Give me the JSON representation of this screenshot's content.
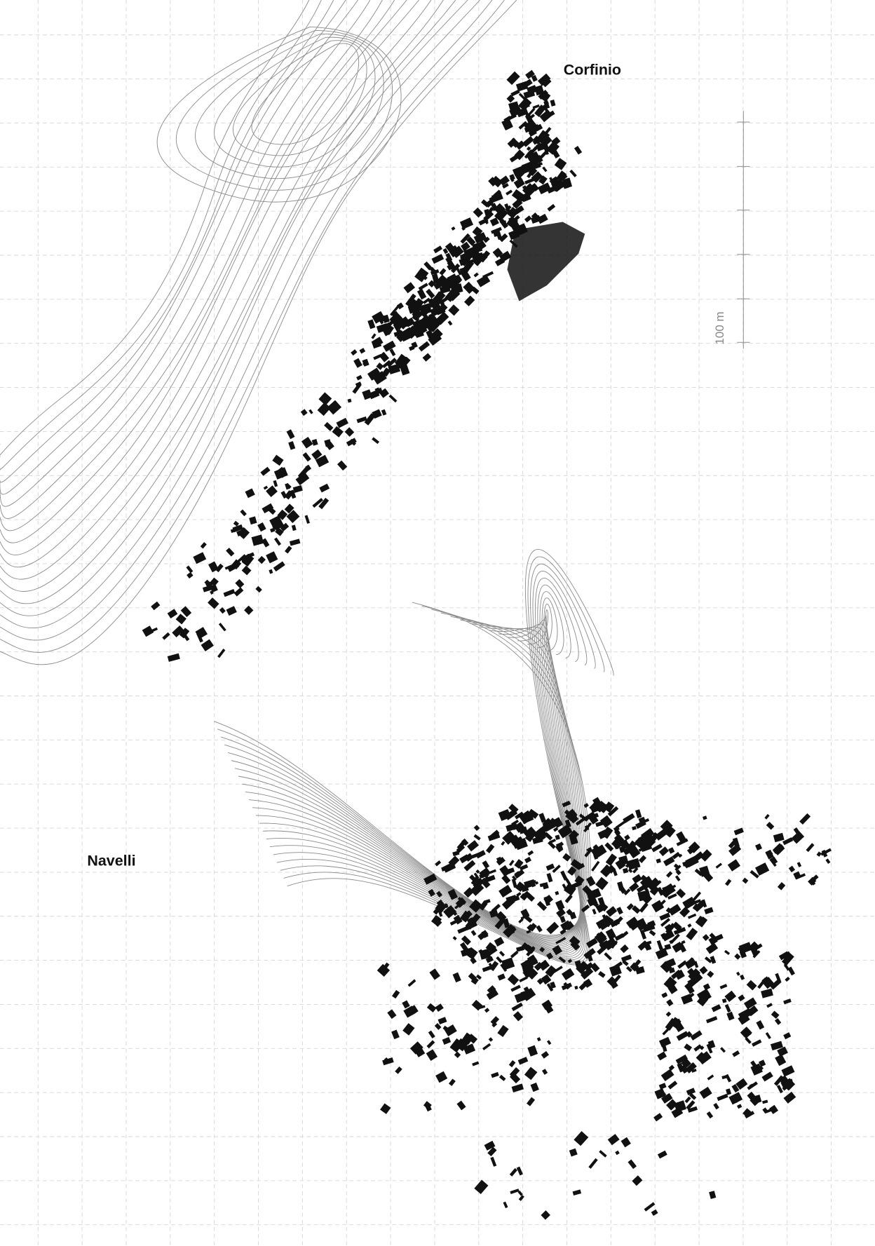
{
  "labels": {
    "corfinio": "Corfinio",
    "navelli": "Navelli"
  },
  "scale_bar": {
    "label": "100 m"
  }
}
